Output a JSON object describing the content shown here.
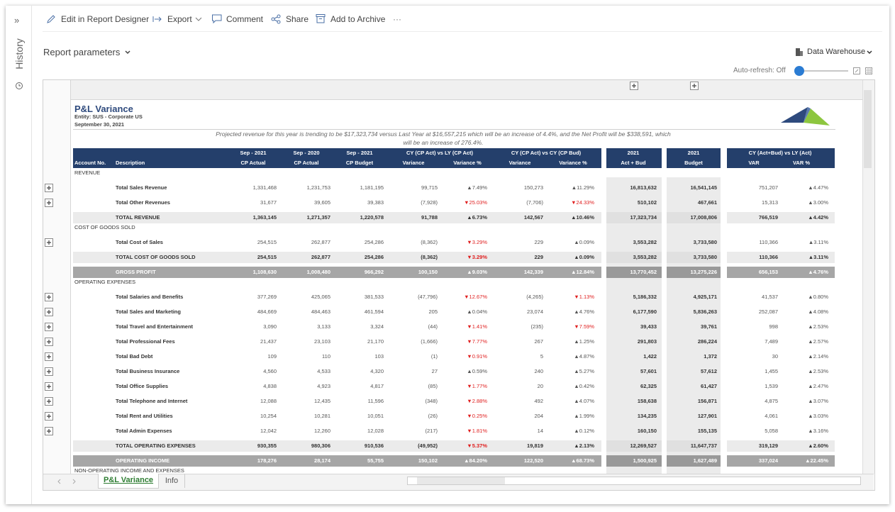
{
  "sidebar": {
    "expand": "»",
    "history": "History"
  },
  "toolbar": {
    "items": [
      "Edit in Report Designer",
      "Export",
      "Comment",
      "Share",
      "Add to Archive"
    ],
    "more": "···"
  },
  "params": {
    "label": "Report parameters",
    "source": "Data Warehouse",
    "auto_refresh": "Auto-refresh: Off"
  },
  "report": {
    "title": "P&L Variance",
    "entity": "Entity: SUS - Corporate US",
    "date": "September 30, 2021",
    "note": "Projected revenue for this year is trending to be $17,323,734 versus Last Year at $16,557,215 which will be  an increase of 4.4%, and the Net Profit will be $338,591, which will be an increase of 276.4%.",
    "header": {
      "top": [
        "Sep - 2021",
        "Sep - 2020",
        "Sep - 2021",
        "CY (CP Act) vs LY (CP Act)",
        "CY (CP Act) vs CY (CP Bud)",
        "2021",
        "2021",
        "CY (Act+Bud) vs LY (Act)"
      ],
      "bottom": [
        "Account No.",
        "Description",
        "CP Actual",
        "CP Actual",
        "CP Budget",
        "Variance",
        "Variance %",
        "Variance",
        "Variance %",
        "Act + Bud",
        "Budget",
        "VAR",
        "VAR %"
      ]
    },
    "rows": [
      {
        "kind": "section",
        "label": "REVENUE"
      },
      {
        "kind": "line",
        "label": "Total Sales Revenue",
        "cells": [
          "1,331,468",
          "1,231,753",
          "1,181,195",
          "99,715",
          "▲7.49%",
          "150,273",
          "▲11.29%",
          "16,813,632",
          "16,541,145",
          "751,207",
          "▲4.47%"
        ]
      },
      {
        "kind": "line",
        "label": "Total Other Revenues",
        "cells": [
          "31,677",
          "39,605",
          "39,383",
          "(7,928)",
          "▼25.03%",
          "(7,706)",
          "▼24.33%",
          "510,102",
          "467,661",
          "15,313",
          "▲3.00%"
        ]
      },
      {
        "kind": "total",
        "label": "TOTAL REVENUE",
        "cells": [
          "1,363,145",
          "1,271,357",
          "1,220,578",
          "91,788",
          "▲6.73%",
          "142,567",
          "▲10.46%",
          "17,323,734",
          "17,008,806",
          "766,519",
          "▲4.42%"
        ]
      },
      {
        "kind": "section",
        "label": "COST OF GOODS SOLD"
      },
      {
        "kind": "line",
        "label": "Total Cost of Sales",
        "cells": [
          "254,515",
          "262,877",
          "254,286",
          "(8,362)",
          "▼3.29%",
          "229",
          "▲0.09%",
          "3,553,282",
          "3,733,580",
          "110,366",
          "▲3.11%"
        ]
      },
      {
        "kind": "total",
        "label": "TOTAL COST OF GOODS SOLD",
        "cells": [
          "254,515",
          "262,877",
          "254,286",
          "(8,362)",
          "▼3.29%",
          "229",
          "▲0.09%",
          "3,553,282",
          "3,733,580",
          "110,366",
          "▲3.11%"
        ]
      },
      {
        "kind": "summary",
        "label": "GROSS PROFIT",
        "cells": [
          "1,108,630",
          "1,008,480",
          "966,292",
          "100,150",
          "▲9.03%",
          "142,339",
          "▲12.84%",
          "13,770,452",
          "13,275,226",
          "656,153",
          "▲4.76%"
        ]
      },
      {
        "kind": "section",
        "label": "OPERATING EXPENSES"
      },
      {
        "kind": "line",
        "label": "Total Salaries and Benefits",
        "cells": [
          "377,269",
          "425,065",
          "381,533",
          "(47,796)",
          "▼12.67%",
          "(4,265)",
          "▼1.13%",
          "5,186,332",
          "4,925,171",
          "41,537",
          "▲0.80%"
        ]
      },
      {
        "kind": "line",
        "label": "Total Sales and Marketing",
        "cells": [
          "484,669",
          "484,463",
          "461,594",
          "205",
          "▲0.04%",
          "23,074",
          "▲4.76%",
          "6,177,590",
          "5,836,263",
          "252,087",
          "▲4.08%"
        ]
      },
      {
        "kind": "line",
        "label": "Total Travel and Entertainment",
        "cells": [
          "3,090",
          "3,133",
          "3,324",
          "(44)",
          "▼1.41%",
          "(235)",
          "▼7.59%",
          "39,433",
          "39,761",
          "998",
          "▲2.53%"
        ]
      },
      {
        "kind": "line",
        "label": "Total Professional Fees",
        "cells": [
          "21,437",
          "23,103",
          "21,170",
          "(1,666)",
          "▼7.77%",
          "267",
          "▲1.25%",
          "291,803",
          "286,224",
          "7,489",
          "▲2.57%"
        ]
      },
      {
        "kind": "line",
        "label": "Total Bad Debt",
        "cells": [
          "109",
          "110",
          "103",
          "(1)",
          "▼0.91%",
          "5",
          "▲4.87%",
          "1,422",
          "1,372",
          "30",
          "▲2.14%"
        ]
      },
      {
        "kind": "line",
        "label": "Total Business Insurance",
        "cells": [
          "4,560",
          "4,533",
          "4,320",
          "27",
          "▲0.59%",
          "240",
          "▲5.27%",
          "57,601",
          "57,612",
          "1,455",
          "▲2.53%"
        ]
      },
      {
        "kind": "line",
        "label": "Total Office Supplies",
        "cells": [
          "4,838",
          "4,923",
          "4,817",
          "(85)",
          "▼1.77%",
          "20",
          "▲0.42%",
          "62,325",
          "61,427",
          "1,539",
          "▲2.47%"
        ]
      },
      {
        "kind": "line",
        "label": "Total Telephone and Internet",
        "cells": [
          "12,088",
          "12,435",
          "11,596",
          "(348)",
          "▼2.88%",
          "492",
          "▲4.07%",
          "158,638",
          "156,871",
          "4,875",
          "▲3.07%"
        ]
      },
      {
        "kind": "line",
        "label": "Total Rent and Utilities",
        "cells": [
          "10,254",
          "10,281",
          "10,051",
          "(26)",
          "▼0.25%",
          "204",
          "▲1.99%",
          "134,235",
          "127,901",
          "4,061",
          "▲3.03%"
        ]
      },
      {
        "kind": "line",
        "label": "Total Admin Expenses",
        "cells": [
          "12,042",
          "12,260",
          "12,028",
          "(217)",
          "▼1.81%",
          "14",
          "▲0.12%",
          "160,150",
          "155,135",
          "5,058",
          "▲3.16%"
        ]
      },
      {
        "kind": "total",
        "label": "TOTAL OPERATING EXPENSES",
        "cells": [
          "930,355",
          "980,306",
          "910,536",
          "(49,952)",
          "▼5.37%",
          "19,819",
          "▲2.13%",
          "12,269,527",
          "11,647,737",
          "319,129",
          "▲2.60%"
        ]
      },
      {
        "kind": "summary",
        "label": "OPERATING INCOME",
        "cells": [
          "178,276",
          "28,174",
          "55,755",
          "150,102",
          "▲84.20%",
          "122,520",
          "▲68.73%",
          "1,500,925",
          "1,627,489",
          "337,024",
          "▲22.45%"
        ]
      },
      {
        "kind": "section",
        "label": "NON-OPERATING INCOME AND EXPENSES"
      }
    ]
  },
  "tabs": [
    "P&L Variance",
    "Info"
  ]
}
